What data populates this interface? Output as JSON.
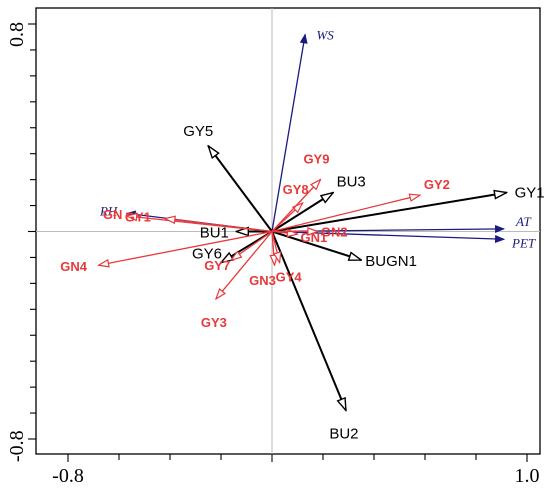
{
  "chart_data": {
    "type": "scatter",
    "subtype": "rda-biplot",
    "xlim": [
      -0.8,
      1.0
    ],
    "ylim": [
      -0.8,
      0.8
    ],
    "x_ticks": [
      "-0.8",
      "1.0"
    ],
    "y_ticks": [
      "0.8",
      "-0.8"
    ],
    "origin_lines": true,
    "colors": {
      "environment": "#1a1a80",
      "species_black": "#000000",
      "species_red": "#e8393b",
      "origin_line": "#bbbbbb"
    },
    "series": [
      {
        "group": "environment",
        "arrows": [
          {
            "label": "WS",
            "x": 0.13,
            "y": 0.76
          },
          {
            "label": "RH",
            "x": -0.57,
            "y": 0.07
          },
          {
            "label": "AT",
            "x": 0.91,
            "y": 0.01
          },
          {
            "label": "PET",
            "x": 0.91,
            "y": -0.03
          }
        ]
      },
      {
        "group": "species_black",
        "arrows": [
          {
            "label": "GY5",
            "x": -0.25,
            "y": 0.33
          },
          {
            "label": "GY1",
            "x": 0.92,
            "y": 0.15
          },
          {
            "label": "BU3",
            "x": 0.24,
            "y": 0.15
          },
          {
            "label": "BU1",
            "x": -0.14,
            "y": 0.0
          },
          {
            "label": "GY6",
            "x": -0.2,
            "y": -0.12
          },
          {
            "label": "BUGN1",
            "x": 0.35,
            "y": -0.11
          },
          {
            "label": "BU2",
            "x": 0.29,
            "y": -0.69
          }
        ]
      },
      {
        "group": "species_red",
        "arrows": [
          {
            "label": "GN",
            "x": -0.57,
            "y": 0.06
          },
          {
            "label": "GY1",
            "x": -0.42,
            "y": 0.05
          },
          {
            "label": "GY8",
            "x": 0.12,
            "y": 0.11
          },
          {
            "label": "GY9",
            "x": 0.19,
            "y": 0.2
          },
          {
            "label": "GY2",
            "x": 0.58,
            "y": 0.14
          },
          {
            "label": "GN1",
            "x": 0.1,
            "y": -0.01
          },
          {
            "label": "GN2",
            "x": 0.18,
            "y": -0.0
          },
          {
            "label": "GN4",
            "x": -0.68,
            "y": -0.13
          },
          {
            "label": "GY7",
            "x": -0.16,
            "y": -0.11
          },
          {
            "label": "GN3",
            "x": 0.01,
            "y": -0.13
          },
          {
            "label": "GY4",
            "x": 0.03,
            "y": -0.12
          },
          {
            "label": "GY3",
            "x": -0.22,
            "y": -0.26
          }
        ]
      }
    ]
  }
}
